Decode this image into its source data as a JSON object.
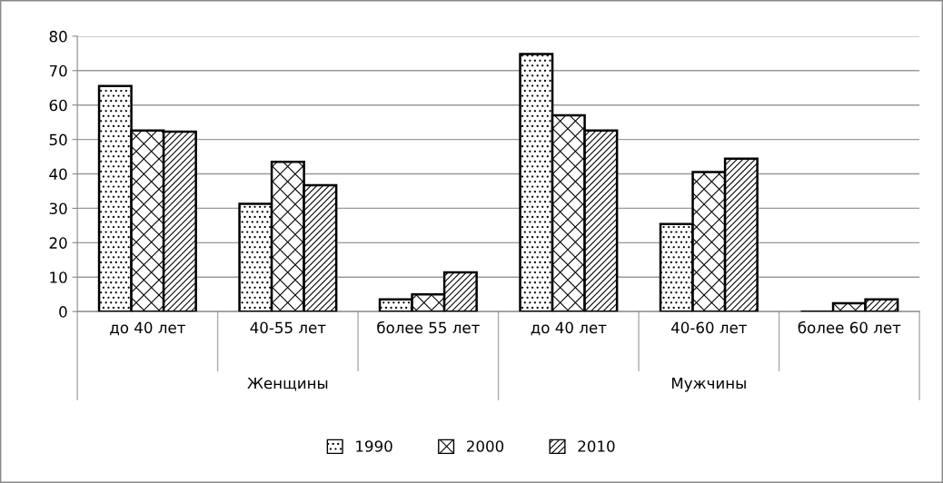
{
  "chart_data": {
    "type": "bar",
    "categories": [
      "до 40 лет",
      "40-55 лет",
      "более 55 лет",
      "до 40 лет",
      "40-60 лет",
      "более 60 лет"
    ],
    "series": [
      {
        "name": "1990",
        "color": "#000000",
        "values": [
          65.5,
          31.3,
          3.5,
          74.8,
          25.4,
          0
        ]
      },
      {
        "name": "2000",
        "color": "#000000",
        "values": [
          52.6,
          43.5,
          5.0,
          57.0,
          40.5,
          2.4
        ]
      },
      {
        "name": "2010",
        "color": "#000000",
        "values": [
          52.3,
          36.7,
          11.4,
          52.6,
          44.4,
          3.5
        ]
      }
    ],
    "annotations": [
      "Женщины",
      "Мужчины"
    ],
    "ylim": [
      0,
      80
    ],
    "yticks": [
      0,
      10,
      20,
      30,
      40,
      50,
      60,
      70,
      80
    ],
    "grid": "y",
    "legend": "bottom"
  }
}
